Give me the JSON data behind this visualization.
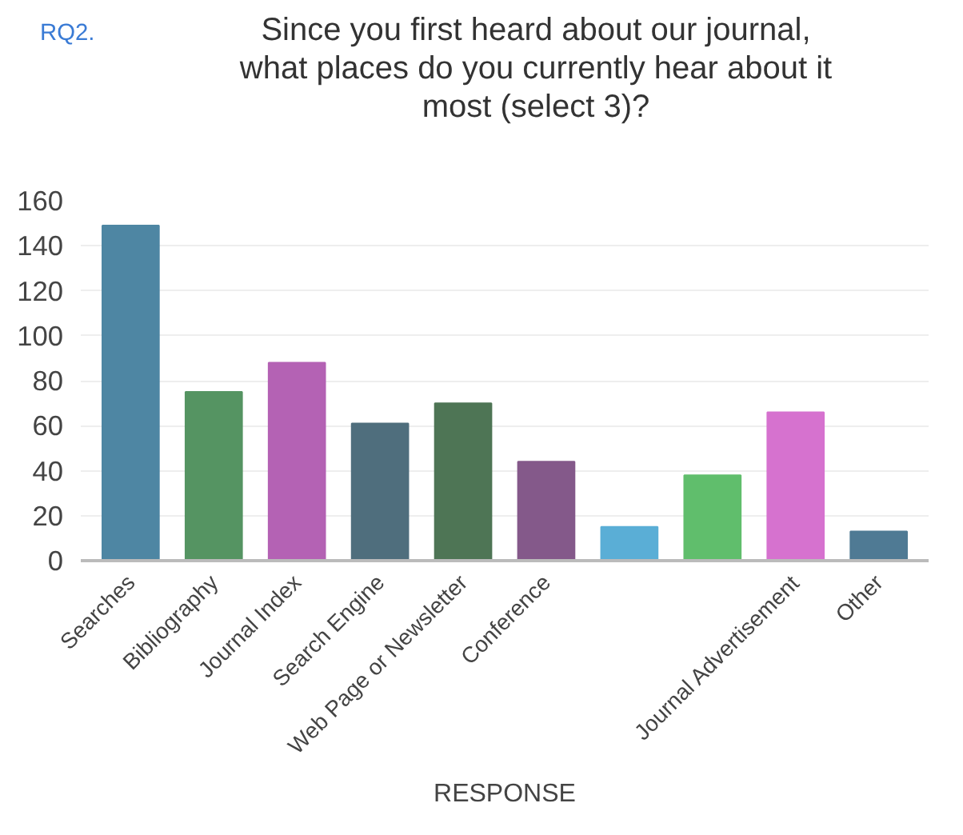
{
  "chart_data": {
    "type": "bar",
    "title": "Since you first heard about our journal,\nwhat places do you currently hear about it\nmost (select 3)?",
    "annotations": [
      "RQ2."
    ],
    "xlabel": "RESPONSE",
    "categories": [
      "Searches",
      "Bibliography",
      "Journal Index",
      "Search Engine",
      "Web Page or Newsletter",
      "Conference",
      null,
      null,
      "Journal Advertisement",
      "Other"
    ],
    "values": [
      149,
      75,
      88,
      61,
      70,
      44,
      15,
      38,
      66,
      13
    ],
    "colors": [
      "#4e86a3",
      "#559462",
      "#b462b4",
      "#4f6e7d",
      "#4e7555",
      "#84598a",
      "#5aaed6",
      "#60be6c",
      "#d672cf",
      "#4f7a94"
    ],
    "ylim": [
      0,
      160
    ],
    "yticks": [
      0,
      20,
      40,
      60,
      80,
      100,
      120,
      140,
      160
    ],
    "grid": "y"
  }
}
